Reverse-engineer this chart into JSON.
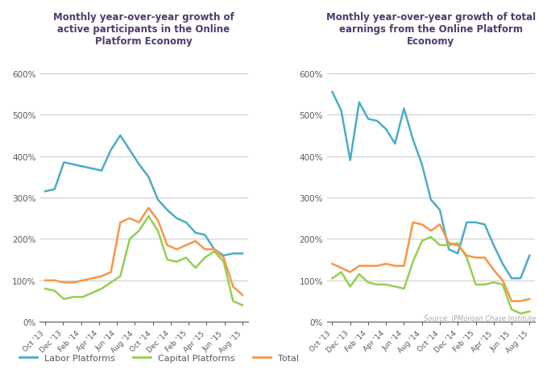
{
  "title1": "Monthly year-over-year growth of\nactive participants in the Online\nPlatform Economy",
  "title2": "Monthly year-over-year growth of total\nearnings from the Online Platform\nEconomy",
  "source": "Source: JPMorgan Chase Institute",
  "xlabel_ticks": [
    "Oct '13",
    "Dec '13",
    "Feb '14",
    "Apr '14",
    "Jun '14",
    "Aug '14",
    "Oct '14",
    "Dec '14",
    "Feb '15",
    "Apr '15",
    "Jun '15",
    "Aug '15"
  ],
  "ylim": [
    0,
    650
  ],
  "yticks": [
    0,
    100,
    200,
    300,
    400,
    500,
    600
  ],
  "ytick_labels": [
    "0%",
    "100%",
    "200%",
    "300%",
    "400%",
    "500%",
    "600%"
  ],
  "color_labor": "#4BACC6",
  "color_capital": "#92D050",
  "color_total": "#F79646",
  "legend_labor": "Labor Platforms",
  "legend_capital": "Capital Platforms",
  "legend_total": "Total",
  "title_color": "#4F3B6B",
  "axis_color": "#595959",
  "grid_color": "#C9C9C9",
  "chart1": {
    "labor": [
      315,
      320,
      385,
      380,
      375,
      370,
      365,
      415,
      450,
      415,
      380,
      350,
      295,
      270,
      250,
      240,
      215,
      210,
      175,
      160,
      165,
      165
    ],
    "capital": [
      80,
      75,
      55,
      60,
      60,
      70,
      80,
      95,
      110,
      200,
      220,
      255,
      220,
      150,
      145,
      155,
      130,
      155,
      170,
      145,
      50,
      40
    ],
    "total": [
      100,
      100,
      95,
      95,
      100,
      105,
      110,
      120,
      240,
      250,
      240,
      275,
      245,
      185,
      175,
      185,
      195,
      175,
      175,
      155,
      85,
      65
    ]
  },
  "chart2": {
    "labor": [
      555,
      510,
      390,
      530,
      490,
      485,
      465,
      430,
      515,
      440,
      380,
      295,
      270,
      175,
      165,
      240,
      240,
      235,
      185,
      140,
      105,
      105,
      160
    ],
    "capital": [
      105,
      120,
      85,
      115,
      95,
      90,
      90,
      85,
      80,
      145,
      195,
      205,
      185,
      185,
      190,
      155,
      90,
      90,
      95,
      90,
      30,
      20,
      25
    ],
    "total": [
      140,
      130,
      120,
      135,
      135,
      135,
      140,
      135,
      135,
      240,
      235,
      220,
      235,
      190,
      185,
      160,
      155,
      155,
      125,
      100,
      50,
      50,
      55
    ]
  }
}
